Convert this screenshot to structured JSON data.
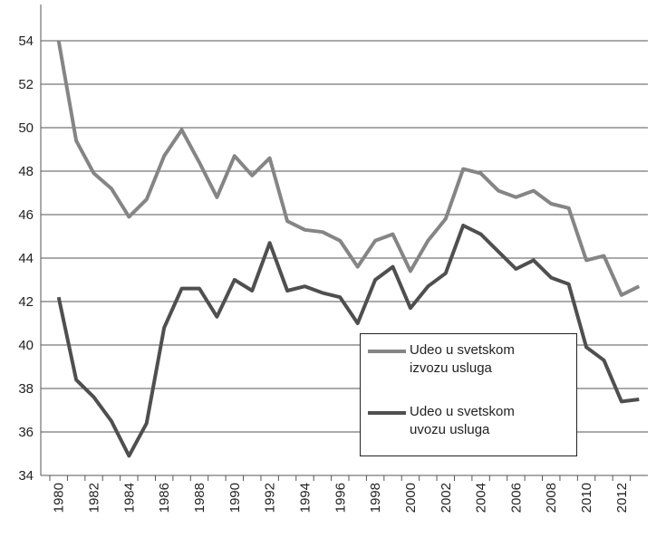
{
  "chart_data": {
    "type": "line",
    "categories": [
      "1980",
      null,
      "1982",
      null,
      "1984",
      null,
      "1986",
      null,
      "1988",
      null,
      "1990",
      null,
      "1992",
      null,
      "1994",
      null,
      "1996",
      null,
      "1998",
      null,
      "2000",
      null,
      "2002",
      null,
      "2004",
      null,
      "2006",
      null,
      "2008",
      null,
      "2010",
      null,
      "2012",
      null
    ],
    "series": [
      {
        "name": "Udeo u svetskom izvozu usluga",
        "color": "#858585",
        "values": [
          54.0,
          49.4,
          47.9,
          47.2,
          45.9,
          46.7,
          48.7,
          49.9,
          48.4,
          46.8,
          48.7,
          47.8,
          48.6,
          45.7,
          45.3,
          45.2,
          44.8,
          43.6,
          44.8,
          45.1,
          43.4,
          44.8,
          45.8,
          48.1,
          47.9,
          47.1,
          46.8,
          47.1,
          46.5,
          46.3,
          43.9,
          44.1,
          42.3,
          42.7
        ]
      },
      {
        "name": "Udeo u svetskom uvozu usluga",
        "color": "#4f4f4f",
        "values": [
          42.2,
          38.4,
          37.6,
          36.5,
          34.9,
          36.4,
          40.8,
          42.6,
          42.6,
          41.3,
          43.0,
          42.5,
          44.7,
          42.5,
          42.7,
          42.4,
          42.2,
          41.0,
          43.0,
          43.6,
          41.7,
          42.7,
          43.3,
          45.5,
          45.1,
          44.3,
          43.5,
          43.9,
          43.1,
          42.8,
          39.9,
          39.3,
          37.4,
          37.5
        ]
      }
    ],
    "ylim": [
      34,
      54
    ],
    "yticks": [
      34,
      36,
      38,
      40,
      42,
      44,
      46,
      48,
      50,
      52,
      54
    ],
    "grid": true
  }
}
